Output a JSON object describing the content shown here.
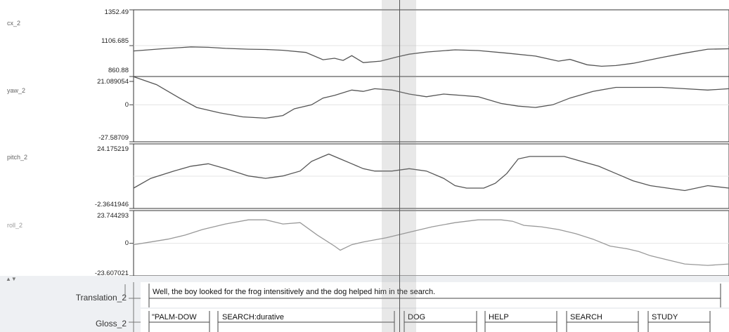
{
  "tracks": [
    {
      "name": "cx_2",
      "color": "#555555",
      "ymax": 1352.49,
      "ymid": 1106.685,
      "ymin": 860.88,
      "labels": [
        "1352.49",
        "1106.685",
        "860.88"
      ],
      "points": [
        [
          0,
          1070
        ],
        [
          50,
          1085
        ],
        [
          100,
          1098
        ],
        [
          130,
          1095
        ],
        [
          160,
          1088
        ],
        [
          200,
          1082
        ],
        [
          230,
          1080
        ],
        [
          260,
          1075
        ],
        [
          300,
          1060
        ],
        [
          330,
          1010
        ],
        [
          350,
          1020
        ],
        [
          365,
          1005
        ],
        [
          380,
          1038
        ],
        [
          400,
          990
        ],
        [
          430,
          1000
        ],
        [
          460,
          1030
        ],
        [
          480,
          1048
        ],
        [
          510,
          1063
        ],
        [
          560,
          1078
        ],
        [
          600,
          1073
        ],
        [
          650,
          1055
        ],
        [
          700,
          1035
        ],
        [
          740,
          1000
        ],
        [
          760,
          1012
        ],
        [
          790,
          975
        ],
        [
          815,
          965
        ],
        [
          840,
          970
        ],
        [
          870,
          985
        ],
        [
          920,
          1025
        ],
        [
          960,
          1055
        ],
        [
          1000,
          1082
        ],
        [
          1037,
          1085
        ]
      ]
    },
    {
      "name": "yaw_2",
      "color": "#555555",
      "ymax": 21.089054,
      "ymid": 0,
      "ymin": -27.58709,
      "labels": [
        "21.089054",
        "0",
        "-27.58709"
      ],
      "points": [
        [
          0,
          21
        ],
        [
          40,
          15
        ],
        [
          80,
          5
        ],
        [
          110,
          -2
        ],
        [
          150,
          -6
        ],
        [
          190,
          -9
        ],
        [
          230,
          -10
        ],
        [
          260,
          -8
        ],
        [
          280,
          -3
        ],
        [
          310,
          0
        ],
        [
          330,
          5
        ],
        [
          350,
          7
        ],
        [
          380,
          11
        ],
        [
          400,
          10
        ],
        [
          420,
          12
        ],
        [
          450,
          11
        ],
        [
          480,
          8
        ],
        [
          510,
          6
        ],
        [
          540,
          8
        ],
        [
          570,
          7
        ],
        [
          600,
          6
        ],
        [
          640,
          1
        ],
        [
          670,
          -1
        ],
        [
          700,
          -2
        ],
        [
          730,
          0
        ],
        [
          760,
          5
        ],
        [
          800,
          10
        ],
        [
          840,
          13
        ],
        [
          880,
          13
        ],
        [
          920,
          13
        ],
        [
          960,
          12
        ],
        [
          1000,
          11
        ],
        [
          1037,
          12
        ]
      ]
    },
    {
      "name": "pitch_2",
      "color": "#555555",
      "ymax": 24.175219,
      "ymid": null,
      "ymin": -2.3641946,
      "labels": [
        "24.175219",
        "-2.3641946"
      ],
      "points": [
        [
          0,
          6
        ],
        [
          30,
          10
        ],
        [
          70,
          13
        ],
        [
          100,
          15
        ],
        [
          130,
          16
        ],
        [
          160,
          14
        ],
        [
          200,
          11
        ],
        [
          230,
          10
        ],
        [
          260,
          11
        ],
        [
          290,
          13
        ],
        [
          310,
          17
        ],
        [
          330,
          19
        ],
        [
          340,
          20
        ],
        [
          360,
          18
        ],
        [
          380,
          16
        ],
        [
          400,
          14
        ],
        [
          420,
          13
        ],
        [
          450,
          13
        ],
        [
          480,
          14
        ],
        [
          510,
          13
        ],
        [
          540,
          10
        ],
        [
          560,
          7
        ],
        [
          580,
          6
        ],
        [
          610,
          6
        ],
        [
          630,
          8
        ],
        [
          650,
          12
        ],
        [
          670,
          18
        ],
        [
          690,
          19
        ],
        [
          720,
          19
        ],
        [
          750,
          19
        ],
        [
          780,
          17
        ],
        [
          810,
          15
        ],
        [
          840,
          12
        ],
        [
          870,
          9
        ],
        [
          900,
          7
        ],
        [
          930,
          6
        ],
        [
          960,
          5
        ],
        [
          1000,
          7
        ],
        [
          1037,
          6
        ]
      ]
    },
    {
      "name": "roll_2",
      "color": "#999999",
      "ymax": 23.744293,
      "ymid": 0,
      "ymin": -23.607021,
      "labels": [
        "23.744293",
        "0",
        "-23.607021"
      ],
      "points": [
        [
          0,
          -1
        ],
        [
          30,
          1
        ],
        [
          60,
          3
        ],
        [
          90,
          6
        ],
        [
          120,
          10
        ],
        [
          160,
          14
        ],
        [
          200,
          17
        ],
        [
          230,
          17
        ],
        [
          260,
          14
        ],
        [
          290,
          15
        ],
        [
          320,
          6
        ],
        [
          350,
          -2
        ],
        [
          360,
          -5
        ],
        [
          380,
          -1
        ],
        [
          400,
          1
        ],
        [
          440,
          4
        ],
        [
          480,
          8
        ],
        [
          520,
          12
        ],
        [
          560,
          15
        ],
        [
          600,
          17
        ],
        [
          640,
          17
        ],
        [
          660,
          16
        ],
        [
          680,
          13
        ],
        [
          710,
          12
        ],
        [
          740,
          10
        ],
        [
          770,
          7
        ],
        [
          800,
          3
        ],
        [
          830,
          -2
        ],
        [
          860,
          -4
        ],
        [
          880,
          -6
        ],
        [
          900,
          -9
        ],
        [
          930,
          -12
        ],
        [
          960,
          -15
        ],
        [
          1000,
          -16
        ],
        [
          1037,
          -15
        ]
      ]
    }
  ],
  "tiers": {
    "translation": {
      "label": "Translation_2",
      "text": "Well, the boy looked for the frog intensitively and the dog helped him in the search."
    },
    "gloss": {
      "label": "Gloss_2",
      "items": [
        "\"PALM-DOW",
        "SEARCH:durative",
        "DOG",
        "HELP",
        "SEARCH",
        "STUDY"
      ]
    }
  }
}
